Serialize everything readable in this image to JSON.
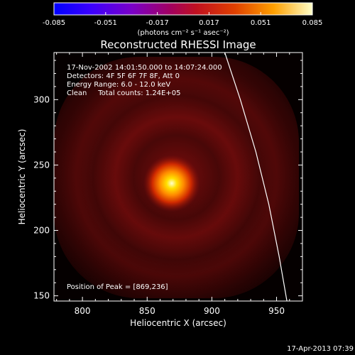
{
  "chart_data": {
    "type": "heatmap",
    "title": "Reconstructed RHESSI Image",
    "xlabel": "Heliocentric X (arcsec)",
    "ylabel": "Heliocentric Y (arcsec)",
    "xlim": [
      778,
      970
    ],
    "ylim": [
      146,
      336
    ],
    "x_ticks": [
      "800",
      "850",
      "900",
      "950"
    ],
    "x_tick_values": [
      800,
      850,
      900,
      950
    ],
    "y_ticks": [
      "150",
      "200",
      "250",
      "300"
    ],
    "y_tick_values": [
      150,
      200,
      250,
      300
    ],
    "grid": false,
    "peak": {
      "x": 869,
      "y": 236
    },
    "colorbar": {
      "min": -0.085,
      "max": 0.085,
      "ticks": [
        "-0.085",
        "-0.051",
        "-0.017",
        "0.017",
        "0.051",
        "0.085"
      ],
      "tick_values": [
        -0.085,
        -0.051,
        -0.017,
        0.017,
        0.051,
        0.085
      ],
      "unit_label": "(photons cm⁻² s⁻¹ asec⁻²)"
    },
    "annotations": [
      "17-Nov-2002 14:01:50.000 to 14:07:24.000",
      "Detectors: 4F 5F 6F 7F 8F, Att 0",
      "Energy Range: 6.0 - 12.0 keV",
      "Clean     Total counts: 1.24E+05"
    ],
    "peak_label": "Position of Peak = [869,236]",
    "limb_curve": [
      [
        910,
        336
      ],
      [
        922,
        300
      ],
      [
        934,
        260
      ],
      [
        944,
        220
      ],
      [
        952,
        180
      ],
      [
        958,
        146
      ]
    ],
    "colors": {
      "background": "#000000",
      "limb": "#ffffff"
    }
  },
  "footer": {
    "timestamp": "17-Apr-2013 07:39"
  }
}
